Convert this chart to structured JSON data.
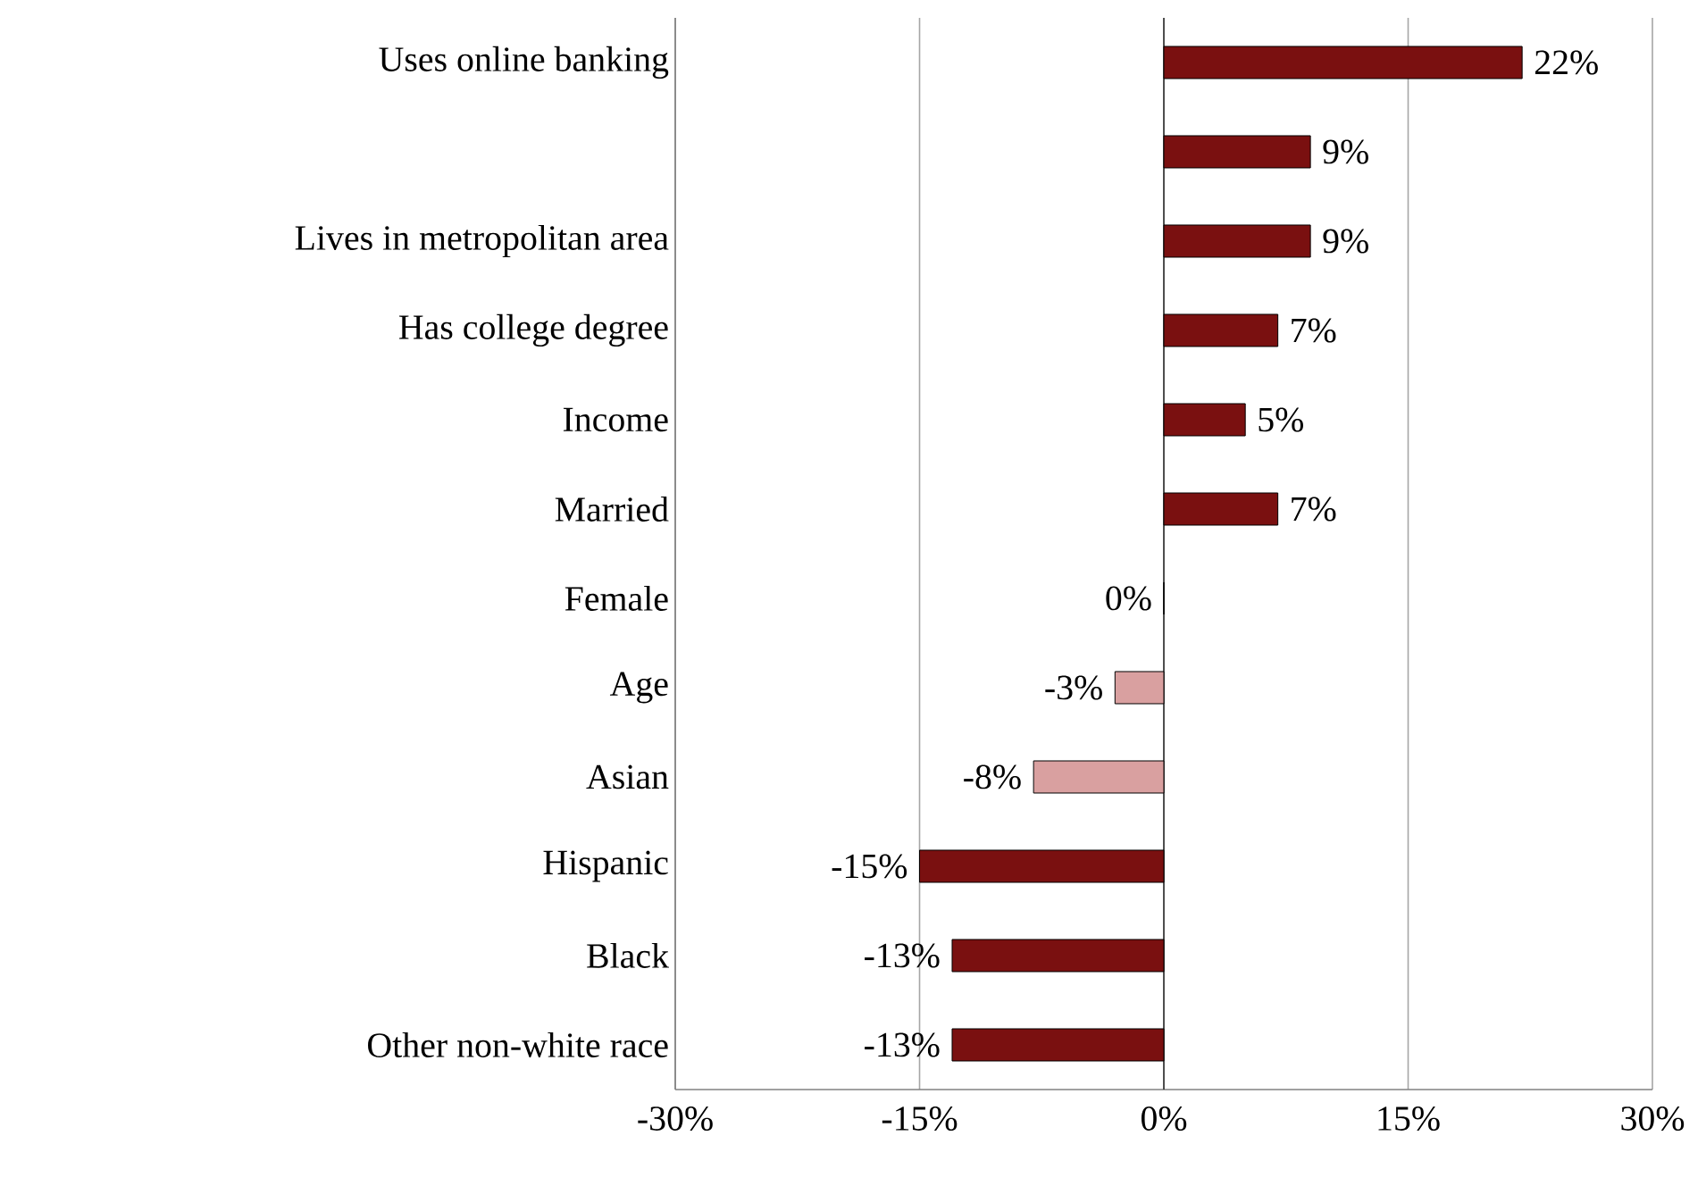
{
  "chart_data": {
    "type": "bar",
    "orientation": "horizontal",
    "categories": [
      "Uses online banking",
      null,
      "Lives in metropolitan area",
      "Has college degree",
      "Income",
      "Married",
      "Female",
      "Age",
      "Asian",
      "Hispanic",
      "Black",
      "Other non-white race"
    ],
    "values": [
      22,
      9,
      9,
      7,
      5,
      7,
      0,
      -3,
      -8,
      -15,
      -13,
      -13
    ],
    "value_labels": [
      "22%",
      "9%",
      "9%",
      "7%",
      "5%",
      "7%",
      "0%",
      "-3%",
      "-8%",
      "-15%",
      "-13%",
      "-13%"
    ],
    "colors": [
      "#7a1010",
      "#7a1010",
      "#7a1010",
      "#7a1010",
      "#7a1010",
      "#7a1010",
      "#7a1010",
      "#d9a0a0",
      "#d9a0a0",
      "#7a1010",
      "#7a1010",
      "#7a1010"
    ],
    "xlim": [
      -30,
      30
    ],
    "xticks": [
      {
        "value": -30,
        "label": "-30%"
      },
      {
        "value": -15,
        "label": "-15%"
      },
      {
        "value": 0,
        "label": "0%"
      },
      {
        "value": 15,
        "label": "15%"
      },
      {
        "value": 30,
        "label": "30%"
      }
    ],
    "grid": "x"
  }
}
